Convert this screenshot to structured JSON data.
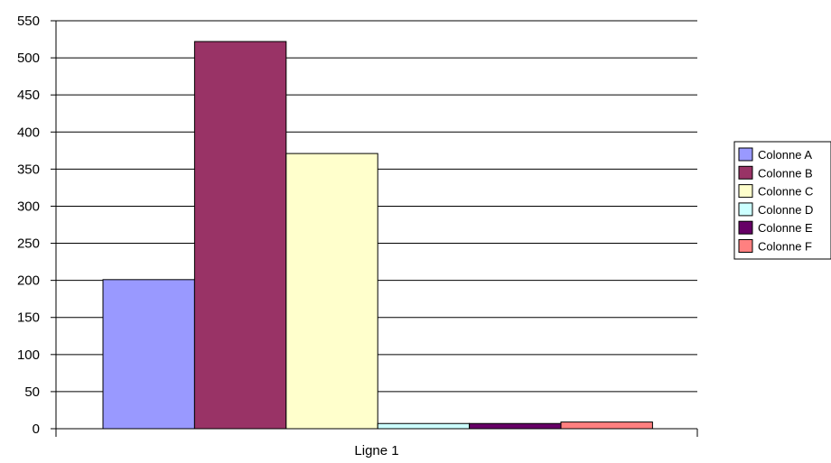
{
  "chart_data": {
    "type": "bar",
    "categories": [
      "Ligne 1"
    ],
    "series": [
      {
        "name": "Colonne A",
        "values": [
          201
        ],
        "color": "#9999FF"
      },
      {
        "name": "Colonne B",
        "values": [
          522
        ],
        "color": "#993366"
      },
      {
        "name": "Colonne C",
        "values": [
          371
        ],
        "color": "#FFFFCC"
      },
      {
        "name": "Colonne D",
        "values": [
          7
        ],
        "color": "#CCFFFF"
      },
      {
        "name": "Colonne E",
        "values": [
          7
        ],
        "color": "#660066"
      },
      {
        "name": "Colonne F",
        "values": [
          9
        ],
        "color": "#FF8080"
      }
    ],
    "yticks": [
      0,
      50,
      100,
      150,
      200,
      250,
      300,
      350,
      400,
      450,
      500,
      550
    ],
    "ylim": [
      0,
      550
    ],
    "grid": true,
    "legend": "right"
  }
}
